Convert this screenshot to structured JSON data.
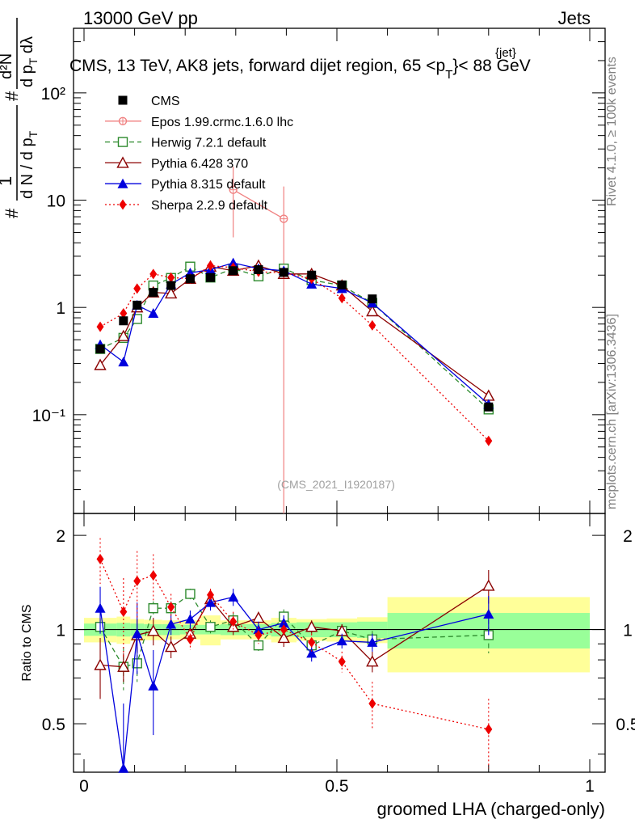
{
  "header": {
    "left": "13000 GeV pp",
    "right": "Jets"
  },
  "title": {
    "main": "CMS, 13 TeV, AK8 jets, forward dijet region, 65 <p",
    "sub": "T",
    "sup": "{jet}",
    "tail": "}< 88 GeV"
  },
  "side_labels": {
    "rivet": "Rivet 4.1.0, ≥ 100k events",
    "mcplots": "mcplots.cern.ch [arXiv:1306.3436]"
  },
  "watermark": "(CMS_2021_I1920187)",
  "y_label_main": {
    "num1": "1",
    "den1": "d N / d p",
    "den1_sub": "T",
    "hash": "#",
    "num2": "d²N",
    "den2": "d p",
    "den2_sub": "T",
    "den2_tail": " dλ"
  },
  "chart_data": {
    "type": "line",
    "xlabel": "groomed LHA (charged-only)",
    "ylabel_ratio": "Ratio to CMS",
    "xlim": [
      -0.02,
      1.0
    ],
    "ylim_main": [
      0.012,
      400
    ],
    "ylim_ratio": [
      0.35,
      2.35
    ],
    "yscale_main": "log",
    "yscale_ratio": "log",
    "x_ticks": [
      "0",
      "0.5",
      "1"
    ],
    "y_ticks_main": [
      "10⁻¹",
      "1",
      "10",
      "10²"
    ],
    "y_ticks_ratio": [
      "0.5",
      "1",
      "2"
    ],
    "bins": [
      [
        0,
        0.0645
      ],
      [
        0.0645,
        0.0915
      ],
      [
        0.0915,
        0.1185
      ],
      [
        0.1185,
        0.1545
      ],
      [
        0.1545,
        0.19
      ],
      [
        0.19,
        0.23
      ],
      [
        0.23,
        0.27
      ],
      [
        0.27,
        0.32
      ],
      [
        0.32,
        0.37
      ],
      [
        0.37,
        0.42
      ],
      [
        0.42,
        0.48
      ],
      [
        0.48,
        0.54
      ],
      [
        0.54,
        0.6
      ],
      [
        0.6,
        1.0
      ]
    ],
    "x": [
      0.032,
      0.078,
      0.105,
      0.137,
      0.172,
      0.21,
      0.25,
      0.295,
      0.345,
      0.395,
      0.45,
      0.51,
      0.57,
      0.8
    ],
    "data": {
      "name": "CMS",
      "values": [
        0.41,
        0.75,
        1.05,
        1.38,
        1.6,
        1.85,
        1.9,
        2.2,
        2.25,
        2.12,
        2.0,
        1.62,
        1.2,
        0.118
      ],
      "band_inner": [
        0.045,
        0.05,
        0.045,
        0.04,
        0.04,
        0.035,
        0.035,
        0.04,
        0.04,
        0.05,
        0.055,
        0.055,
        0.06,
        0.13
      ],
      "band_outer": [
        0.09,
        0.1,
        0.08,
        0.075,
        0.07,
        0.07,
        0.11,
        0.07,
        0.07,
        0.09,
        0.08,
        0.085,
        0.095,
        0.27
      ]
    },
    "series": [
      {
        "name": "Epos 1.99.crmc.1.6.0 lhc",
        "color": "#f08080",
        "marker": "cross-circle",
        "dash": "",
        "x": [
          0.295,
          0.395
        ],
        "values": [
          12.5,
          6.7
        ],
        "err": [
          8,
          6.7
        ]
      },
      {
        "name": "Herwig 7.2.1 default",
        "color": "#2e8b2e",
        "marker": "open-square",
        "dash": "6,4",
        "values": [
          0.41,
          0.52,
          0.78,
          1.6,
          1.88,
          2.4,
          1.9,
          2.3,
          1.95,
          2.3,
          1.8,
          1.6,
          1.1,
          0.112
        ],
        "ratio": [
          1.02,
          0.76,
          0.78,
          1.17,
          1.17,
          1.3,
          1.02,
          1.07,
          0.89,
          1.1,
          0.89,
          0.99,
          0.93,
          0.96
        ],
        "ratio_err": [
          0.06,
          0.12,
          0.1,
          0.06,
          0.06,
          0.05,
          0.05,
          0.06,
          0.05,
          0.06,
          0.05,
          0.05,
          0.06,
          0.12
        ]
      },
      {
        "name": "Pythia 6.428 370",
        "color": "#8b0000",
        "marker": "open-triangle",
        "dash": "",
        "values": [
          0.29,
          0.54,
          1.0,
          1.38,
          1.35,
          1.85,
          2.4,
          2.2,
          2.45,
          2.05,
          2.05,
          1.6,
          0.92,
          0.15
        ],
        "ratio": [
          0.77,
          0.76,
          0.96,
          0.99,
          0.88,
          0.97,
          1.25,
          1.02,
          1.09,
          0.94,
          1.02,
          0.99,
          0.79,
          1.38
        ],
        "ratio_err": [
          0.17,
          0.08,
          0.12,
          0.1,
          0.07,
          0.06,
          0.06,
          0.06,
          0.05,
          0.06,
          0.05,
          0.05,
          0.06,
          0.17
        ]
      },
      {
        "name": "Pythia 8.315 default",
        "color": "#0000dd",
        "marker": "filled-triangle",
        "dash": "",
        "values": [
          0.45,
          0.31,
          1.05,
          0.88,
          1.65,
          2.1,
          2.25,
          2.6,
          2.3,
          2.2,
          1.65,
          1.5,
          1.1,
          0.125
        ],
        "ratio": [
          1.17,
          0.36,
          0.97,
          0.66,
          1.04,
          1.08,
          1.22,
          1.27,
          1.0,
          1.05,
          0.84,
          0.92,
          0.91,
          1.12
        ],
        "ratio_err": [
          0.2,
          0.22,
          0.25,
          0.2,
          0.08,
          0.07,
          0.07,
          0.08,
          0.06,
          0.06,
          0.05,
          0.05,
          0.06,
          0.16
        ]
      },
      {
        "name": "Sherpa 2.2.9 default",
        "color": "#ee0000",
        "marker": "filled-diamond",
        "dash": "2,3",
        "values": [
          0.66,
          0.88,
          1.5,
          2.05,
          1.9,
          1.85,
          2.45,
          2.35,
          2.15,
          2.1,
          1.85,
          1.22,
          0.68,
          0.057
        ],
        "ratio": [
          1.68,
          1.14,
          1.43,
          1.49,
          1.18,
          0.93,
          1.29,
          1.06,
          0.96,
          1.0,
          0.91,
          0.79,
          0.58,
          0.48
        ],
        "ratio_err": [
          0.28,
          0.32,
          0.35,
          0.25,
          0.12,
          0.07,
          0.06,
          0.08,
          0.06,
          0.06,
          0.06,
          0.06,
          0.1,
          0.12
        ]
      }
    ]
  }
}
